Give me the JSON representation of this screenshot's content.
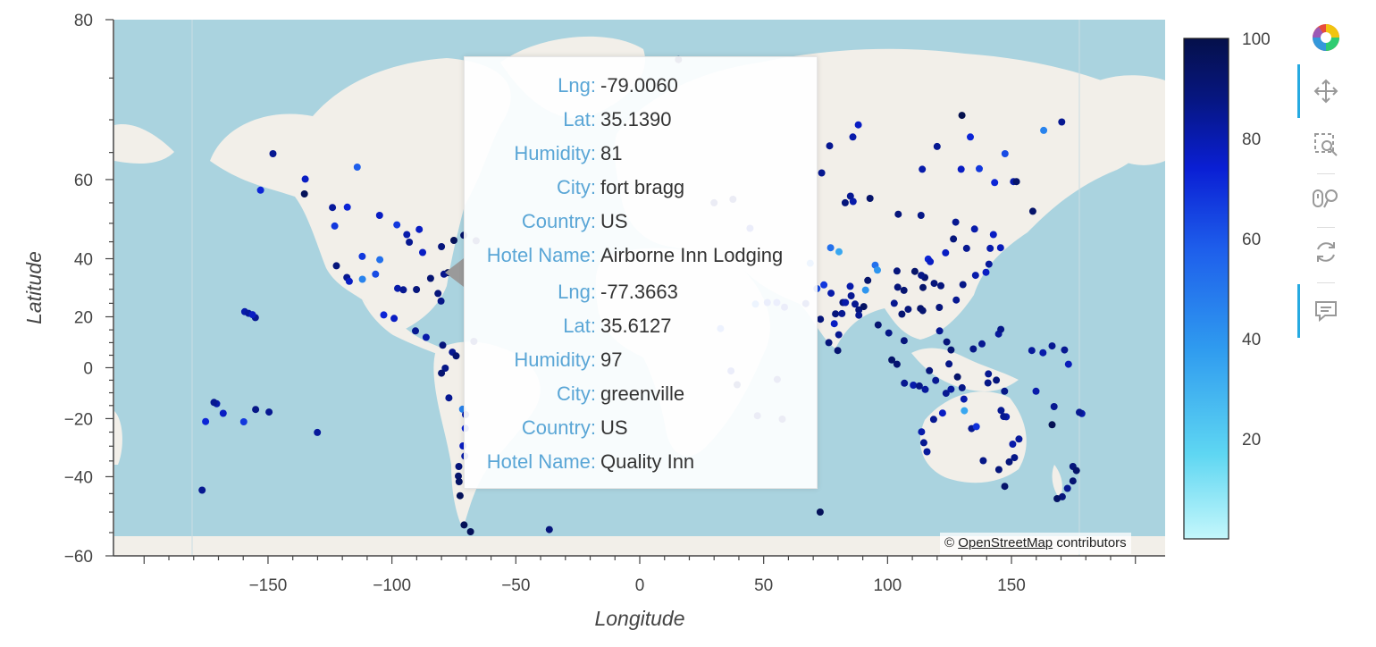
{
  "chart_data": {
    "type": "scatter",
    "xlabel": "Longitude",
    "ylabel": "Latitude",
    "xlim": [
      -212,
      212
    ],
    "ylim": [
      -60,
      80
    ],
    "x_ticks": [
      -150,
      -100,
      -50,
      0,
      50,
      100,
      150
    ],
    "y_ticks": [
      -60,
      -40,
      -20,
      0,
      20,
      40,
      60,
      80
    ],
    "tick_labels_x": [
      "−150",
      "−100",
      "−50",
      "0",
      "50",
      "100",
      "150"
    ],
    "tick_labels_y": [
      "−60",
      "−40",
      "−20",
      "0",
      "20",
      "40",
      "60",
      "80"
    ],
    "color_field": "Humidity",
    "colorbar": {
      "range": [
        0,
        100
      ],
      "ticks": [
        20,
        40,
        60,
        80,
        100
      ]
    },
    "points": [
      [
        15.6,
        76.8,
        95
      ],
      [
        130.0,
        70.6,
        99
      ],
      [
        -148.0,
        64.8,
        80
      ],
      [
        -135.0,
        60.1,
        70
      ],
      [
        -153.0,
        57.8,
        65
      ],
      [
        -135.3,
        57.0,
        95
      ],
      [
        -114.0,
        62.4,
        50
      ],
      [
        -124.0,
        53.9,
        78
      ],
      [
        -118.0,
        54.0,
        65
      ],
      [
        -105.0,
        52.0,
        70
      ],
      [
        -98.0,
        49.6,
        60
      ],
      [
        -94.0,
        47.0,
        75
      ],
      [
        -89.0,
        48.4,
        70
      ],
      [
        -80.0,
        43.6,
        85
      ],
      [
        -75.0,
        45.4,
        95
      ],
      [
        -71.0,
        46.8,
        90
      ],
      [
        -66.0,
        45.3,
        88
      ],
      [
        -87.6,
        41.9,
        70
      ],
      [
        -93.0,
        44.9,
        80
      ],
      [
        -104.9,
        39.7,
        45
      ],
      [
        -112.0,
        40.7,
        60
      ],
      [
        -118.2,
        34.0,
        80
      ],
      [
        -122.4,
        37.8,
        85
      ],
      [
        -123.1,
        49.3,
        60
      ],
      [
        -117.2,
        32.7,
        70
      ],
      [
        -111.9,
        33.4,
        40
      ],
      [
        -106.6,
        35.1,
        55
      ],
      [
        -97.7,
        30.3,
        75
      ],
      [
        -95.4,
        29.8,
        80
      ],
      [
        -90.1,
        29.9,
        85
      ],
      [
        -84.4,
        33.7,
        88
      ],
      [
        -81.4,
        28.5,
        85
      ],
      [
        -80.2,
        25.8,
        82
      ],
      [
        -77.4,
        35.6,
        97
      ],
      [
        -79.0,
        35.1,
        81
      ],
      [
        -99.1,
        19.4,
        70
      ],
      [
        -103.3,
        20.7,
        65
      ],
      [
        -90.5,
        14.6,
        80
      ],
      [
        -86.2,
        12.1,
        75
      ],
      [
        -79.5,
        9.0,
        85
      ],
      [
        -75.6,
        6.2,
        80
      ],
      [
        -74.1,
        4.7,
        88
      ],
      [
        -66.9,
        10.5,
        85
      ],
      [
        -78.5,
        -0.2,
        82
      ],
      [
        -80.0,
        -2.2,
        88
      ],
      [
        -77.0,
        -12.0,
        80
      ],
      [
        -71.5,
        -16.4,
        40
      ],
      [
        -70.3,
        -18.5,
        75
      ],
      [
        -70.4,
        -23.6,
        65
      ],
      [
        -71.3,
        -29.9,
        70
      ],
      [
        -70.6,
        -33.4,
        75
      ],
      [
        -73.0,
        -36.8,
        85
      ],
      [
        -73.2,
        -39.8,
        90
      ],
      [
        -72.9,
        -41.5,
        92
      ],
      [
        -72.5,
        -45.6,
        95
      ],
      [
        -70.9,
        -53.2,
        96
      ],
      [
        -68.3,
        -54.8,
        95
      ],
      [
        -36.5,
        -54.3,
        85
      ],
      [
        -159.4,
        21.9,
        75
      ],
      [
        -157.9,
        21.3,
        78
      ],
      [
        -155.1,
        19.7,
        80
      ],
      [
        -156.3,
        20.8,
        70
      ],
      [
        -170.7,
        -14.3,
        75
      ],
      [
        -171.8,
        -13.8,
        80
      ],
      [
        -168.1,
        -18.0,
        70
      ],
      [
        -175.2,
        -21.1,
        65
      ],
      [
        -159.8,
        -21.2,
        60
      ],
      [
        -149.6,
        -17.5,
        80
      ],
      [
        -130.1,
        -25.1,
        78
      ],
      [
        -176.6,
        -44.0,
        80
      ],
      [
        -155.0,
        -16.5,
        82
      ],
      [
        30.0,
        55.0,
        85
      ],
      [
        37.6,
        55.8,
        85
      ],
      [
        44.5,
        48.7,
        70
      ],
      [
        55.3,
        25.3,
        60
      ],
      [
        68.8,
        38.6,
        40
      ],
      [
        77.0,
        43.3,
        45
      ],
      [
        80.4,
        42.1,
        30
      ],
      [
        85.0,
        56.5,
        80
      ],
      [
        73.4,
        61.3,
        80
      ],
      [
        82.9,
        55.0,
        85
      ],
      [
        86.1,
        55.3,
        75
      ],
      [
        92.9,
        56.0,
        90
      ],
      [
        104.3,
        52.3,
        85
      ],
      [
        113.5,
        52.0,
        82
      ],
      [
        127.5,
        50.3,
        80
      ],
      [
        135.1,
        48.5,
        75
      ],
      [
        131.9,
        43.1,
        80
      ],
      [
        126.6,
        45.8,
        85
      ],
      [
        123.4,
        41.8,
        70
      ],
      [
        116.4,
        39.9,
        65
      ],
      [
        117.2,
        39.1,
        70
      ],
      [
        121.5,
        31.2,
        85
      ],
      [
        114.3,
        30.6,
        90
      ],
      [
        106.6,
        29.6,
        88
      ],
      [
        104.1,
        30.7,
        85
      ],
      [
        113.3,
        23.1,
        90
      ],
      [
        114.2,
        22.3,
        88
      ],
      [
        108.3,
        22.8,
        85
      ],
      [
        102.7,
        25.0,
        80
      ],
      [
        91.1,
        29.7,
        35
      ],
      [
        88.4,
        22.6,
        85
      ],
      [
        85.3,
        27.7,
        80
      ],
      [
        77.2,
        28.6,
        75
      ],
      [
        72.9,
        19.1,
        85
      ],
      [
        78.5,
        17.4,
        70
      ],
      [
        80.3,
        13.1,
        80
      ],
      [
        76.3,
        10.0,
        85
      ],
      [
        79.9,
        6.9,
        88
      ],
      [
        90.4,
        23.8,
        92
      ],
      [
        96.2,
        16.9,
        88
      ],
      [
        100.5,
        13.8,
        82
      ],
      [
        106.7,
        10.8,
        85
      ],
      [
        105.8,
        21.0,
        88
      ],
      [
        101.7,
        3.1,
        90
      ],
      [
        103.8,
        1.4,
        88
      ],
      [
        106.8,
        -6.2,
        80
      ],
      [
        110.4,
        -7.0,
        75
      ],
      [
        112.8,
        -7.3,
        82
      ],
      [
        115.2,
        -8.7,
        78
      ],
      [
        116.9,
        -1.2,
        85
      ],
      [
        119.4,
        -5.1,
        80
      ],
      [
        124.8,
        1.5,
        82
      ],
      [
        121.0,
        14.6,
        80
      ],
      [
        123.9,
        10.3,
        85
      ],
      [
        125.6,
        7.1,
        88
      ],
      [
        120.9,
        23.5,
        85
      ],
      [
        127.7,
        26.2,
        80
      ],
      [
        130.4,
        31.6,
        82
      ],
      [
        135.5,
        34.7,
        75
      ],
      [
        139.7,
        35.7,
        70
      ],
      [
        140.9,
        38.3,
        78
      ],
      [
        141.4,
        43.1,
        75
      ],
      [
        145.6,
        43.3,
        72
      ],
      [
        142.7,
        47.0,
        70
      ],
      [
        150.8,
        59.6,
        75
      ],
      [
        158.6,
        53.0,
        90
      ],
      [
        143.2,
        59.4,
        65
      ],
      [
        129.7,
        62.0,
        70
      ],
      [
        114.0,
        62.0,
        75
      ],
      [
        120.0,
        66.0,
        80
      ],
      [
        137.0,
        62.1,
        60
      ],
      [
        147.4,
        64.8,
        55
      ],
      [
        163.0,
        68.5,
        40
      ],
      [
        170.3,
        69.7,
        80
      ],
      [
        88.2,
        69.3,
        70
      ],
      [
        86.0,
        67.5,
        75
      ],
      [
        76.6,
        66.1,
        80
      ],
      [
        133.4,
        67.5,
        65
      ],
      [
        152.0,
        59.6,
        90
      ],
      [
        130.8,
        -12.5,
        75
      ],
      [
        133.9,
        -23.7,
        80
      ],
      [
        122.2,
        -17.9,
        70
      ],
      [
        115.9,
        -31.9,
        78
      ],
      [
        138.6,
        -34.9,
        82
      ],
      [
        144.9,
        -37.8,
        85
      ],
      [
        147.3,
        -42.9,
        90
      ],
      [
        151.2,
        -33.9,
        82
      ],
      [
        153.0,
        -27.5,
        78
      ],
      [
        145.8,
        -16.9,
        80
      ],
      [
        149.1,
        -35.3,
        85
      ],
      [
        147.9,
        -19.3,
        75
      ],
      [
        174.8,
        -41.3,
        88
      ],
      [
        174.8,
        -36.8,
        85
      ],
      [
        172.6,
        -43.5,
        80
      ],
      [
        170.5,
        -45.9,
        85
      ],
      [
        168.4,
        -46.4,
        92
      ],
      [
        176.2,
        -38.1,
        90
      ],
      [
        178.4,
        -18.1,
        75
      ],
      [
        177.4,
        -17.6,
        80
      ],
      [
        166.4,
        -22.3,
        97
      ],
      [
        167.2,
        -15.4,
        80
      ],
      [
        159.9,
        -9.4,
        75
      ],
      [
        147.2,
        -9.4,
        82
      ],
      [
        143.9,
        -5.0,
        85
      ],
      [
        140.7,
        -2.5,
        80
      ],
      [
        134.6,
        7.5,
        82
      ],
      [
        158.2,
        6.9,
        78
      ],
      [
        171.4,
        7.1,
        80
      ],
      [
        173.0,
        1.4,
        72
      ],
      [
        162.7,
        6.0,
        75
      ],
      [
        166.4,
        8.7,
        80
      ],
      [
        144.8,
        13.4,
        78
      ],
      [
        145.7,
        15.2,
        82
      ],
      [
        138.1,
        9.5,
        80
      ],
      [
        130.1,
        -8.0,
        82
      ],
      [
        123.6,
        -10.2,
        80
      ],
      [
        128.2,
        -3.7,
        90
      ],
      [
        125.6,
        -8.6,
        78
      ],
      [
        140.5,
        -6.1,
        82
      ],
      [
        150.5,
        -29.3,
        75
      ],
      [
        146.8,
        -19.2,
        80
      ],
      [
        135.8,
        -23.0,
        62
      ],
      [
        118.6,
        -20.3,
        80
      ],
      [
        113.7,
        -24.9,
        75
      ],
      [
        114.6,
        -28.8,
        80
      ],
      [
        131.0,
        -17.0,
        30
      ],
      [
        72.8,
        -50.0,
        95
      ],
      [
        55.5,
        -4.7,
        80
      ],
      [
        57.5,
        -20.2,
        85
      ],
      [
        47.5,
        -18.9,
        80
      ],
      [
        39.3,
        -6.8,
        88
      ],
      [
        36.8,
        -1.3,
        70
      ],
      [
        32.6,
        15.5,
        50
      ],
      [
        46.7,
        24.7,
        45
      ],
      [
        51.5,
        25.3,
        65
      ],
      [
        58.4,
        23.6,
        70
      ],
      [
        67.0,
        24.9,
        75
      ],
      [
        74.3,
        31.5,
        60
      ],
      [
        71.5,
        30.2,
        55
      ],
      [
        82.0,
        25.3,
        85
      ],
      [
        83.0,
        25.3,
        75
      ],
      [
        86.9,
        24.7,
        80
      ],
      [
        79.0,
        21.1,
        85
      ],
      [
        81.6,
        21.2,
        80
      ],
      [
        88.4,
        20.6,
        80
      ],
      [
        84.9,
        31.0,
        75
      ],
      [
        92.0,
        33.0,
        90
      ],
      [
        95.0,
        38.0,
        45
      ],
      [
        95.9,
        36.4,
        35
      ],
      [
        103.8,
        36.1,
        85
      ],
      [
        111.0,
        36.0,
        90
      ],
      [
        115.0,
        34.0,
        88
      ],
      [
        113.6,
        34.7,
        82
      ],
      [
        118.8,
        32.0,
        85
      ]
    ]
  },
  "tooltip": {
    "rows": [
      {
        "key": "Lng:",
        "val": "-79.0060"
      },
      {
        "key": "Lat:",
        "val": "35.1390"
      },
      {
        "key": "Humidity:",
        "val": "81"
      },
      {
        "key": "City:",
        "val": "fort bragg"
      },
      {
        "key": "Country:",
        "val": "US"
      },
      {
        "key": "Hotel Name:",
        "val": "Airborne Inn Lodging"
      },
      {
        "key": "Lng:",
        "val": "-77.3663"
      },
      {
        "key": "Lat:",
        "val": "35.6127"
      },
      {
        "key": "Humidity:",
        "val": "97"
      },
      {
        "key": "City:",
        "val": "greenville"
      },
      {
        "key": "Country:",
        "val": "US"
      },
      {
        "key": "Hotel Name:",
        "val": "Quality Inn"
      }
    ]
  },
  "attribution": {
    "prefix": "©",
    "link": "OpenStreetMap",
    "suffix": "contributors"
  },
  "toolbar": {
    "tools": [
      {
        "name": "bokeh-logo-icon",
        "icon": "logo"
      },
      {
        "name": "pan-tool-icon",
        "icon": "pan",
        "active": true
      },
      {
        "name": "box-zoom-tool-icon",
        "icon": "box-zoom"
      },
      {
        "name": "wheel-zoom-tool-icon",
        "icon": "wheel-zoom"
      },
      {
        "name": "reset-tool-icon",
        "icon": "reset"
      },
      {
        "name": "hover-tool-icon",
        "icon": "hover",
        "active": true
      }
    ]
  },
  "colors": {
    "ocean": "#aad3df",
    "land": "#f2efe9",
    "axis": "#444444",
    "colormap": [
      "#c4f7fb",
      "#5ed6f2",
      "#2f9bef",
      "#1e5eeb",
      "#0a1fd4",
      "#061680",
      "#05104a"
    ]
  }
}
